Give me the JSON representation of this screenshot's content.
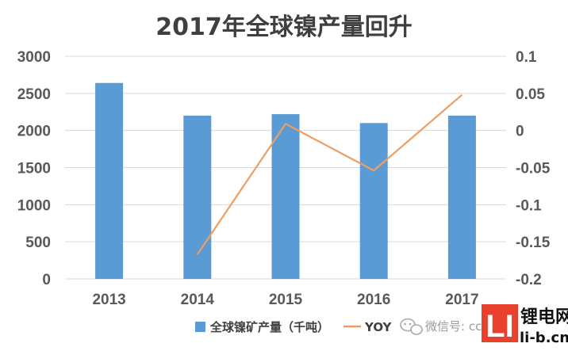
{
  "chart_data": {
    "type": "bar",
    "title": "2017年全球镍产量回升",
    "categories": [
      "2013",
      "2014",
      "2015",
      "2016",
      "2017"
    ],
    "series": [
      {
        "name": "全球镍矿产量（千吨）",
        "type": "bar",
        "axis": "left",
        "values": [
          2640,
          2200,
          2220,
          2100,
          2200
        ]
      },
      {
        "name": "YOY",
        "type": "line",
        "axis": "right",
        "values": [
          null,
          -0.167,
          0.009,
          -0.054,
          0.048
        ]
      }
    ],
    "y_left": {
      "min": 0,
      "max": 3000,
      "ticks": [
        0,
        500,
        1000,
        1500,
        2000,
        2500,
        3000
      ]
    },
    "y_right": {
      "min": -0.2,
      "max": 0.1,
      "ticks": [
        "-0.2",
        "-0.15",
        "-0.1",
        "-0.05",
        "0",
        "0.05",
        "0.1"
      ]
    },
    "grid": true,
    "legend_position": "bottom",
    "colors": {
      "bar": "#5b9bd5",
      "line": "#ed9f63",
      "grid": "#d9d9d9"
    }
  },
  "watermark": {
    "wechat_text": "微信号: cc",
    "logo_letters": "LI",
    "logo_name": "锂电网",
    "logo_url": "li-b.cn"
  }
}
